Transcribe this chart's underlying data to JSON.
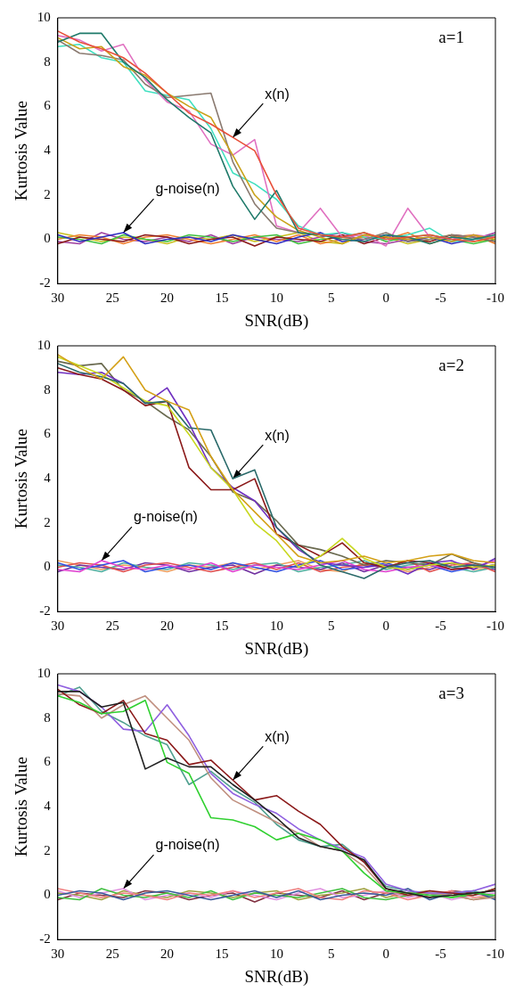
{
  "chart_data": [
    {
      "type": "line",
      "title": "a=1",
      "xlabel": "SNR(dB)",
      "ylabel": "Kurtosis Value",
      "x": [
        30,
        28,
        26,
        24,
        22,
        20,
        18,
        16,
        14,
        12,
        10,
        8,
        6,
        4,
        2,
        0,
        -2,
        -4,
        -6,
        -8,
        -10
      ],
      "xlim": [
        30,
        -10
      ],
      "xticks": [
        30,
        25,
        20,
        15,
        10,
        5,
        0,
        -5,
        -10
      ],
      "ylim": [
        -2,
        10
      ],
      "yticks": [
        -2,
        0,
        2,
        4,
        6,
        8,
        10
      ],
      "annotations": [
        {
          "text": "x(n)",
          "x": 14,
          "y": 4.6
        },
        {
          "text": "g-noise(n)",
          "x": 24,
          "y": 0.3
        }
      ],
      "series": [
        {
          "color": "#e8503a",
          "values": [
            9.4,
            8.9,
            8.6,
            8.2,
            7.5,
            6.6,
            5.7,
            5.2,
            4.6,
            4.0,
            2.0,
            0.5,
            0.2,
            0.1,
            0.3,
            0.0,
            0.1,
            0.2,
            0.0,
            -0.1,
            0.1
          ]
        },
        {
          "color": "#1f7a6a",
          "values": [
            8.9,
            9.3,
            9.3,
            8.0,
            7.3,
            6.3,
            5.5,
            4.8,
            2.4,
            0.9,
            2.2,
            0.3,
            0.2,
            0.0,
            -0.1,
            0.2,
            0.1,
            -0.2,
            0.1,
            0.0,
            0.2
          ]
        },
        {
          "color": "#c9a21a",
          "values": [
            9.1,
            8.6,
            8.7,
            7.8,
            7.4,
            6.6,
            6.0,
            5.5,
            3.8,
            2.0,
            1.0,
            0.4,
            0.1,
            -0.2,
            0.2,
            0.1,
            0.0,
            0.1,
            -0.1,
            0.2,
            0.0
          ]
        },
        {
          "color": "#8a7a70",
          "values": [
            9.0,
            8.4,
            8.3,
            8.1,
            7.0,
            6.4,
            6.5,
            6.6,
            3.5,
            1.6,
            0.5,
            0.3,
            0.2,
            0.1,
            0.0,
            0.3,
            -0.1,
            0.0,
            0.2,
            0.1,
            -0.1
          ]
        },
        {
          "color": "#e070c0",
          "values": [
            9.2,
            9.0,
            8.5,
            8.8,
            7.2,
            6.2,
            5.8,
            4.3,
            3.8,
            4.5,
            0.6,
            0.3,
            1.4,
            0.1,
            0.2,
            -0.3,
            1.4,
            0.1,
            0.0,
            0.2,
            0.1
          ]
        },
        {
          "color": "#40e0c0",
          "values": [
            8.7,
            8.8,
            8.2,
            8.0,
            6.7,
            6.5,
            6.3,
            5.0,
            3.0,
            2.5,
            1.8,
            0.6,
            0.2,
            0.3,
            0.1,
            0.0,
            0.2,
            0.5,
            -0.1,
            0.0,
            0.1
          ]
        },
        {
          "color": "#3030c0",
          "values": [
            0.2,
            -0.1,
            0.1,
            0.3,
            -0.2,
            0.0,
            0.1,
            -0.1,
            0.2,
            0.0,
            -0.2,
            0.1,
            0.3,
            -0.1,
            0.0,
            0.2,
            -0.1,
            0.1,
            -0.2,
            0.0,
            0.1
          ]
        },
        {
          "color": "#8b1a1a",
          "values": [
            -0.2,
            0.1,
            0.0,
            -0.1,
            0.2,
            0.1,
            -0.2,
            0.0,
            0.1,
            -0.3,
            0.1,
            0.0,
            -0.1,
            0.2,
            -0.2,
            0.1,
            0.0,
            -0.1,
            0.2,
            0.1,
            -0.1
          ]
        },
        {
          "color": "#40c040",
          "values": [
            0.1,
            0.0,
            -0.2,
            0.2,
            0.0,
            -0.1,
            0.2,
            0.1,
            -0.1,
            0.1,
            0.2,
            -0.2,
            0.0,
            0.1,
            0.3,
            -0.1,
            0.1,
            0.2,
            0.0,
            -0.2,
            0.0
          ]
        },
        {
          "color": "#f08030",
          "values": [
            0.0,
            0.2,
            0.1,
            -0.2,
            0.1,
            0.2,
            0.0,
            -0.2,
            0.0,
            0.2,
            -0.1,
            0.2,
            -0.2,
            0.0,
            0.1,
            0.0,
            0.3,
            -0.2,
            0.1,
            0.2,
            -0.2
          ]
        },
        {
          "color": "#a040a0",
          "values": [
            -0.1,
            -0.2,
            0.3,
            0.0,
            -0.1,
            0.1,
            -0.1,
            0.2,
            -0.2,
            0.1,
            0.0,
            -0.1,
            0.1,
            0.3,
            -0.1,
            -0.2,
            0.0,
            0.1,
            -0.1,
            0.0,
            0.3
          ]
        },
        {
          "color": "#c8c020",
          "values": [
            0.3,
            0.1,
            -0.1,
            0.1,
            0.0,
            -0.2,
            0.1,
            0.0,
            0.2,
            -0.1,
            0.1,
            0.3,
            -0.1,
            -0.2,
            0.2,
            0.1,
            -0.2,
            0.0,
            0.2,
            -0.1,
            0.0
          ]
        }
      ]
    },
    {
      "type": "line",
      "title": "a=2",
      "xlabel": "SNR(dB)",
      "ylabel": "Kurtosis Value",
      "x": [
        30,
        28,
        26,
        24,
        22,
        20,
        18,
        16,
        14,
        12,
        10,
        8,
        6,
        4,
        2,
        0,
        -2,
        -4,
        -6,
        -8,
        -10
      ],
      "xlim": [
        30,
        -10
      ],
      "xticks": [
        30,
        25,
        20,
        15,
        10,
        5,
        0,
        -5,
        -10
      ],
      "ylim": [
        -2,
        10
      ],
      "yticks": [
        -2,
        0,
        2,
        4,
        6,
        8,
        10
      ],
      "annotations": [
        {
          "text": "x(n)",
          "x": 14,
          "y": 4.0
        },
        {
          "text": "g-noise(n)",
          "x": 26,
          "y": 0.3
        }
      ],
      "series": [
        {
          "color": "#d4a017",
          "values": [
            9.6,
            9.0,
            8.5,
            9.5,
            8.0,
            7.5,
            7.1,
            5.0,
            3.5,
            2.5,
            1.5,
            0.5,
            0.2,
            0.3,
            0.5,
            0.2,
            0.3,
            0.5,
            0.6,
            0.3,
            0.2
          ]
        },
        {
          "color": "#2a6a6a",
          "values": [
            9.2,
            8.8,
            8.6,
            8.3,
            7.4,
            7.5,
            6.3,
            6.2,
            4.0,
            4.4,
            1.8,
            0.9,
            0.1,
            -0.2,
            -0.5,
            0.0,
            0.2,
            0.3,
            0.0,
            0.1,
            0.0
          ]
        },
        {
          "color": "#c8d820",
          "values": [
            9.5,
            9.1,
            8.7,
            8.1,
            7.5,
            7.3,
            6.0,
            4.5,
            3.5,
            2.0,
            1.2,
            0.0,
            0.5,
            1.3,
            0.4,
            0.0,
            -0.1,
            0.1,
            0.2,
            0.0,
            0.1
          ]
        },
        {
          "color": "#8b1a1a",
          "values": [
            9.0,
            8.7,
            8.5,
            8.0,
            7.3,
            7.5,
            4.5,
            3.5,
            3.5,
            4.0,
            1.5,
            1.0,
            0.5,
            1.1,
            0.2,
            0.0,
            0.3,
            0.2,
            -0.1,
            0.0,
            0.1
          ]
        },
        {
          "color": "#7030c0",
          "values": [
            8.8,
            8.7,
            8.8,
            8.3,
            7.4,
            8.1,
            6.5,
            4.5,
            3.6,
            3.0,
            1.8,
            0.8,
            0.2,
            0.1,
            0.0,
            0.1,
            -0.3,
            0.2,
            0.3,
            -0.1,
            0.4
          ]
        },
        {
          "color": "#6a6a50",
          "values": [
            9.3,
            9.1,
            9.2,
            8.0,
            7.5,
            6.8,
            6.2,
            5.0,
            3.4,
            3.0,
            2.1,
            1.0,
            0.8,
            0.5,
            0.1,
            0.3,
            0.2,
            0.1,
            0.6,
            0.2,
            0.0
          ]
        },
        {
          "color": "#e040d0",
          "values": [
            -0.1,
            -0.2,
            0.3,
            0.0,
            -0.1,
            0.1,
            -0.1,
            0.2,
            -0.2,
            0.1,
            0.0,
            -0.1,
            0.1,
            0.3,
            -0.1,
            -0.2,
            0.0,
            0.1,
            -0.1,
            0.0,
            0.3
          ]
        },
        {
          "color": "#3050e0",
          "values": [
            0.2,
            -0.1,
            0.1,
            0.3,
            -0.2,
            0.0,
            0.1,
            -0.1,
            0.2,
            0.0,
            -0.2,
            0.1,
            0.3,
            -0.1,
            0.0,
            0.2,
            -0.1,
            0.1,
            -0.2,
            0.0,
            0.1
          ]
        },
        {
          "color": "#e05050",
          "values": [
            0.0,
            0.2,
            0.1,
            -0.2,
            0.1,
            0.2,
            0.0,
            -0.2,
            0.0,
            0.2,
            -0.1,
            0.2,
            -0.2,
            0.0,
            0.1,
            0.0,
            0.3,
            -0.2,
            0.1,
            0.2,
            -0.2
          ]
        },
        {
          "color": "#50b0a0",
          "values": [
            0.1,
            0.0,
            -0.2,
            0.2,
            0.0,
            -0.1,
            0.2,
            0.1,
            -0.1,
            0.1,
            0.2,
            -0.2,
            0.0,
            0.1,
            0.3,
            -0.1,
            0.1,
            0.2,
            0.0,
            -0.2,
            0.0
          ]
        },
        {
          "color": "#7030a0",
          "values": [
            -0.2,
            0.1,
            0.0,
            -0.1,
            0.2,
            0.1,
            -0.2,
            0.0,
            0.1,
            -0.3,
            0.1,
            0.0,
            -0.1,
            0.2,
            -0.2,
            0.1,
            0.0,
            -0.1,
            0.2,
            0.1,
            -0.1
          ]
        },
        {
          "color": "#f0a060",
          "values": [
            0.3,
            0.1,
            -0.1,
            0.1,
            0.0,
            -0.2,
            0.1,
            0.0,
            0.2,
            -0.1,
            0.1,
            0.3,
            -0.1,
            -0.2,
            0.2,
            0.1,
            -0.2,
            0.0,
            0.2,
            -0.1,
            0.0
          ]
        }
      ]
    },
    {
      "type": "line",
      "title": "a=3",
      "xlabel": "SNR(dB)",
      "ylabel": "Kurtosis Value",
      "x": [
        30,
        28,
        26,
        24,
        22,
        20,
        18,
        16,
        14,
        12,
        10,
        8,
        6,
        4,
        2,
        0,
        -2,
        -4,
        -6,
        -8,
        -10
      ],
      "xlim": [
        30,
        -10
      ],
      "xticks": [
        30,
        25,
        20,
        15,
        10,
        5,
        0,
        -5,
        -10
      ],
      "ylim": [
        -2,
        10
      ],
      "yticks": [
        -2,
        0,
        2,
        4,
        6,
        8,
        10
      ],
      "annotations": [
        {
          "text": "x(n)",
          "x": 14,
          "y": 5.2
        },
        {
          "text": "g-noise(n)",
          "x": 24,
          "y": 0.3
        }
      ],
      "series": [
        {
          "color": "#202020",
          "values": [
            9.2,
            9.2,
            8.5,
            8.7,
            5.7,
            6.2,
            5.8,
            5.8,
            5.0,
            4.3,
            3.5,
            2.6,
            2.2,
            2.0,
            1.6,
            0.3,
            0.1,
            -0.1,
            0.0,
            0.1,
            0.2
          ]
        },
        {
          "color": "#30d030",
          "values": [
            9.0,
            8.7,
            8.2,
            8.3,
            8.8,
            6.0,
            5.5,
            3.5,
            3.4,
            3.1,
            2.5,
            2.8,
            2.5,
            2.0,
            1.0,
            0.2,
            0.1,
            0.0,
            -0.1,
            0.1,
            0.0
          ]
        },
        {
          "color": "#8b1a1a",
          "values": [
            9.3,
            8.6,
            8.2,
            8.8,
            7.3,
            7.0,
            5.9,
            6.1,
            5.2,
            4.3,
            4.5,
            3.8,
            3.2,
            2.2,
            1.5,
            0.3,
            0.0,
            0.2,
            0.1,
            0.0,
            0.3
          ]
        },
        {
          "color": "#9060e0",
          "values": [
            9.5,
            9.2,
            8.5,
            7.5,
            7.4,
            8.6,
            7.2,
            5.5,
            4.6,
            4.1,
            3.7,
            3.0,
            2.5,
            2.1,
            1.7,
            0.5,
            0.2,
            0.1,
            0.1,
            0.2,
            0.5
          ]
        },
        {
          "color": "#c09080",
          "values": [
            9.1,
            9.0,
            8.0,
            8.6,
            9.0,
            8.0,
            7.0,
            5.3,
            4.3,
            3.8,
            3.3,
            2.8,
            2.2,
            2.0,
            1.3,
            0.2,
            0.0,
            0.1,
            0.0,
            -0.2,
            -0.1
          ]
        },
        {
          "color": "#50a090",
          "values": [
            9.0,
            9.4,
            8.3,
            7.8,
            7.2,
            6.8,
            5.0,
            5.6,
            4.8,
            4.2,
            3.2,
            2.5,
            2.2,
            2.3,
            1.5,
            0.4,
            0.2,
            0.0,
            0.1,
            0.2,
            -0.1
          ]
        },
        {
          "color": "#3a5a9a",
          "values": [
            0.0,
            0.2,
            0.1,
            -0.2,
            0.1,
            0.2,
            0.0,
            -0.2,
            0.0,
            0.2,
            -0.1,
            0.2,
            -0.2,
            0.0,
            0.1,
            0.0,
            0.3,
            -0.2,
            0.1,
            0.2,
            -0.2
          ]
        },
        {
          "color": "#f08080",
          "values": [
            0.3,
            0.1,
            -0.1,
            0.1,
            0.0,
            -0.2,
            0.1,
            0.0,
            0.2,
            -0.1,
            0.1,
            0.3,
            -0.1,
            -0.2,
            0.2,
            0.1,
            -0.2,
            0.0,
            0.2,
            -0.1,
            0.0
          ]
        },
        {
          "color": "#40c040",
          "values": [
            -0.1,
            -0.2,
            0.3,
            0.0,
            -0.1,
            0.1,
            -0.1,
            0.2,
            -0.2,
            0.1,
            0.0,
            -0.1,
            0.1,
            0.3,
            -0.1,
            -0.2,
            0.0,
            0.1,
            -0.1,
            0.0,
            0.3
          ]
        },
        {
          "color": "#e090e0",
          "values": [
            0.2,
            -0.1,
            0.1,
            0.3,
            -0.2,
            0.0,
            0.1,
            -0.1,
            0.2,
            0.0,
            -0.2,
            0.1,
            0.3,
            -0.1,
            0.0,
            0.2,
            -0.1,
            0.1,
            -0.2,
            0.0,
            0.1
          ]
        },
        {
          "color": "#a0a040",
          "values": [
            0.1,
            0.0,
            -0.2,
            0.2,
            0.0,
            -0.1,
            0.2,
            0.1,
            -0.1,
            0.1,
            0.2,
            -0.2,
            0.0,
            0.1,
            0.3,
            -0.1,
            0.1,
            0.2,
            0.0,
            -0.2,
            0.0
          ]
        },
        {
          "color": "#803040",
          "values": [
            -0.2,
            0.1,
            0.0,
            -0.1,
            0.2,
            0.1,
            -0.2,
            0.0,
            0.1,
            -0.3,
            0.1,
            0.0,
            -0.1,
            0.2,
            -0.2,
            0.1,
            0.0,
            -0.1,
            0.2,
            0.1,
            -0.1
          ]
        }
      ]
    }
  ]
}
